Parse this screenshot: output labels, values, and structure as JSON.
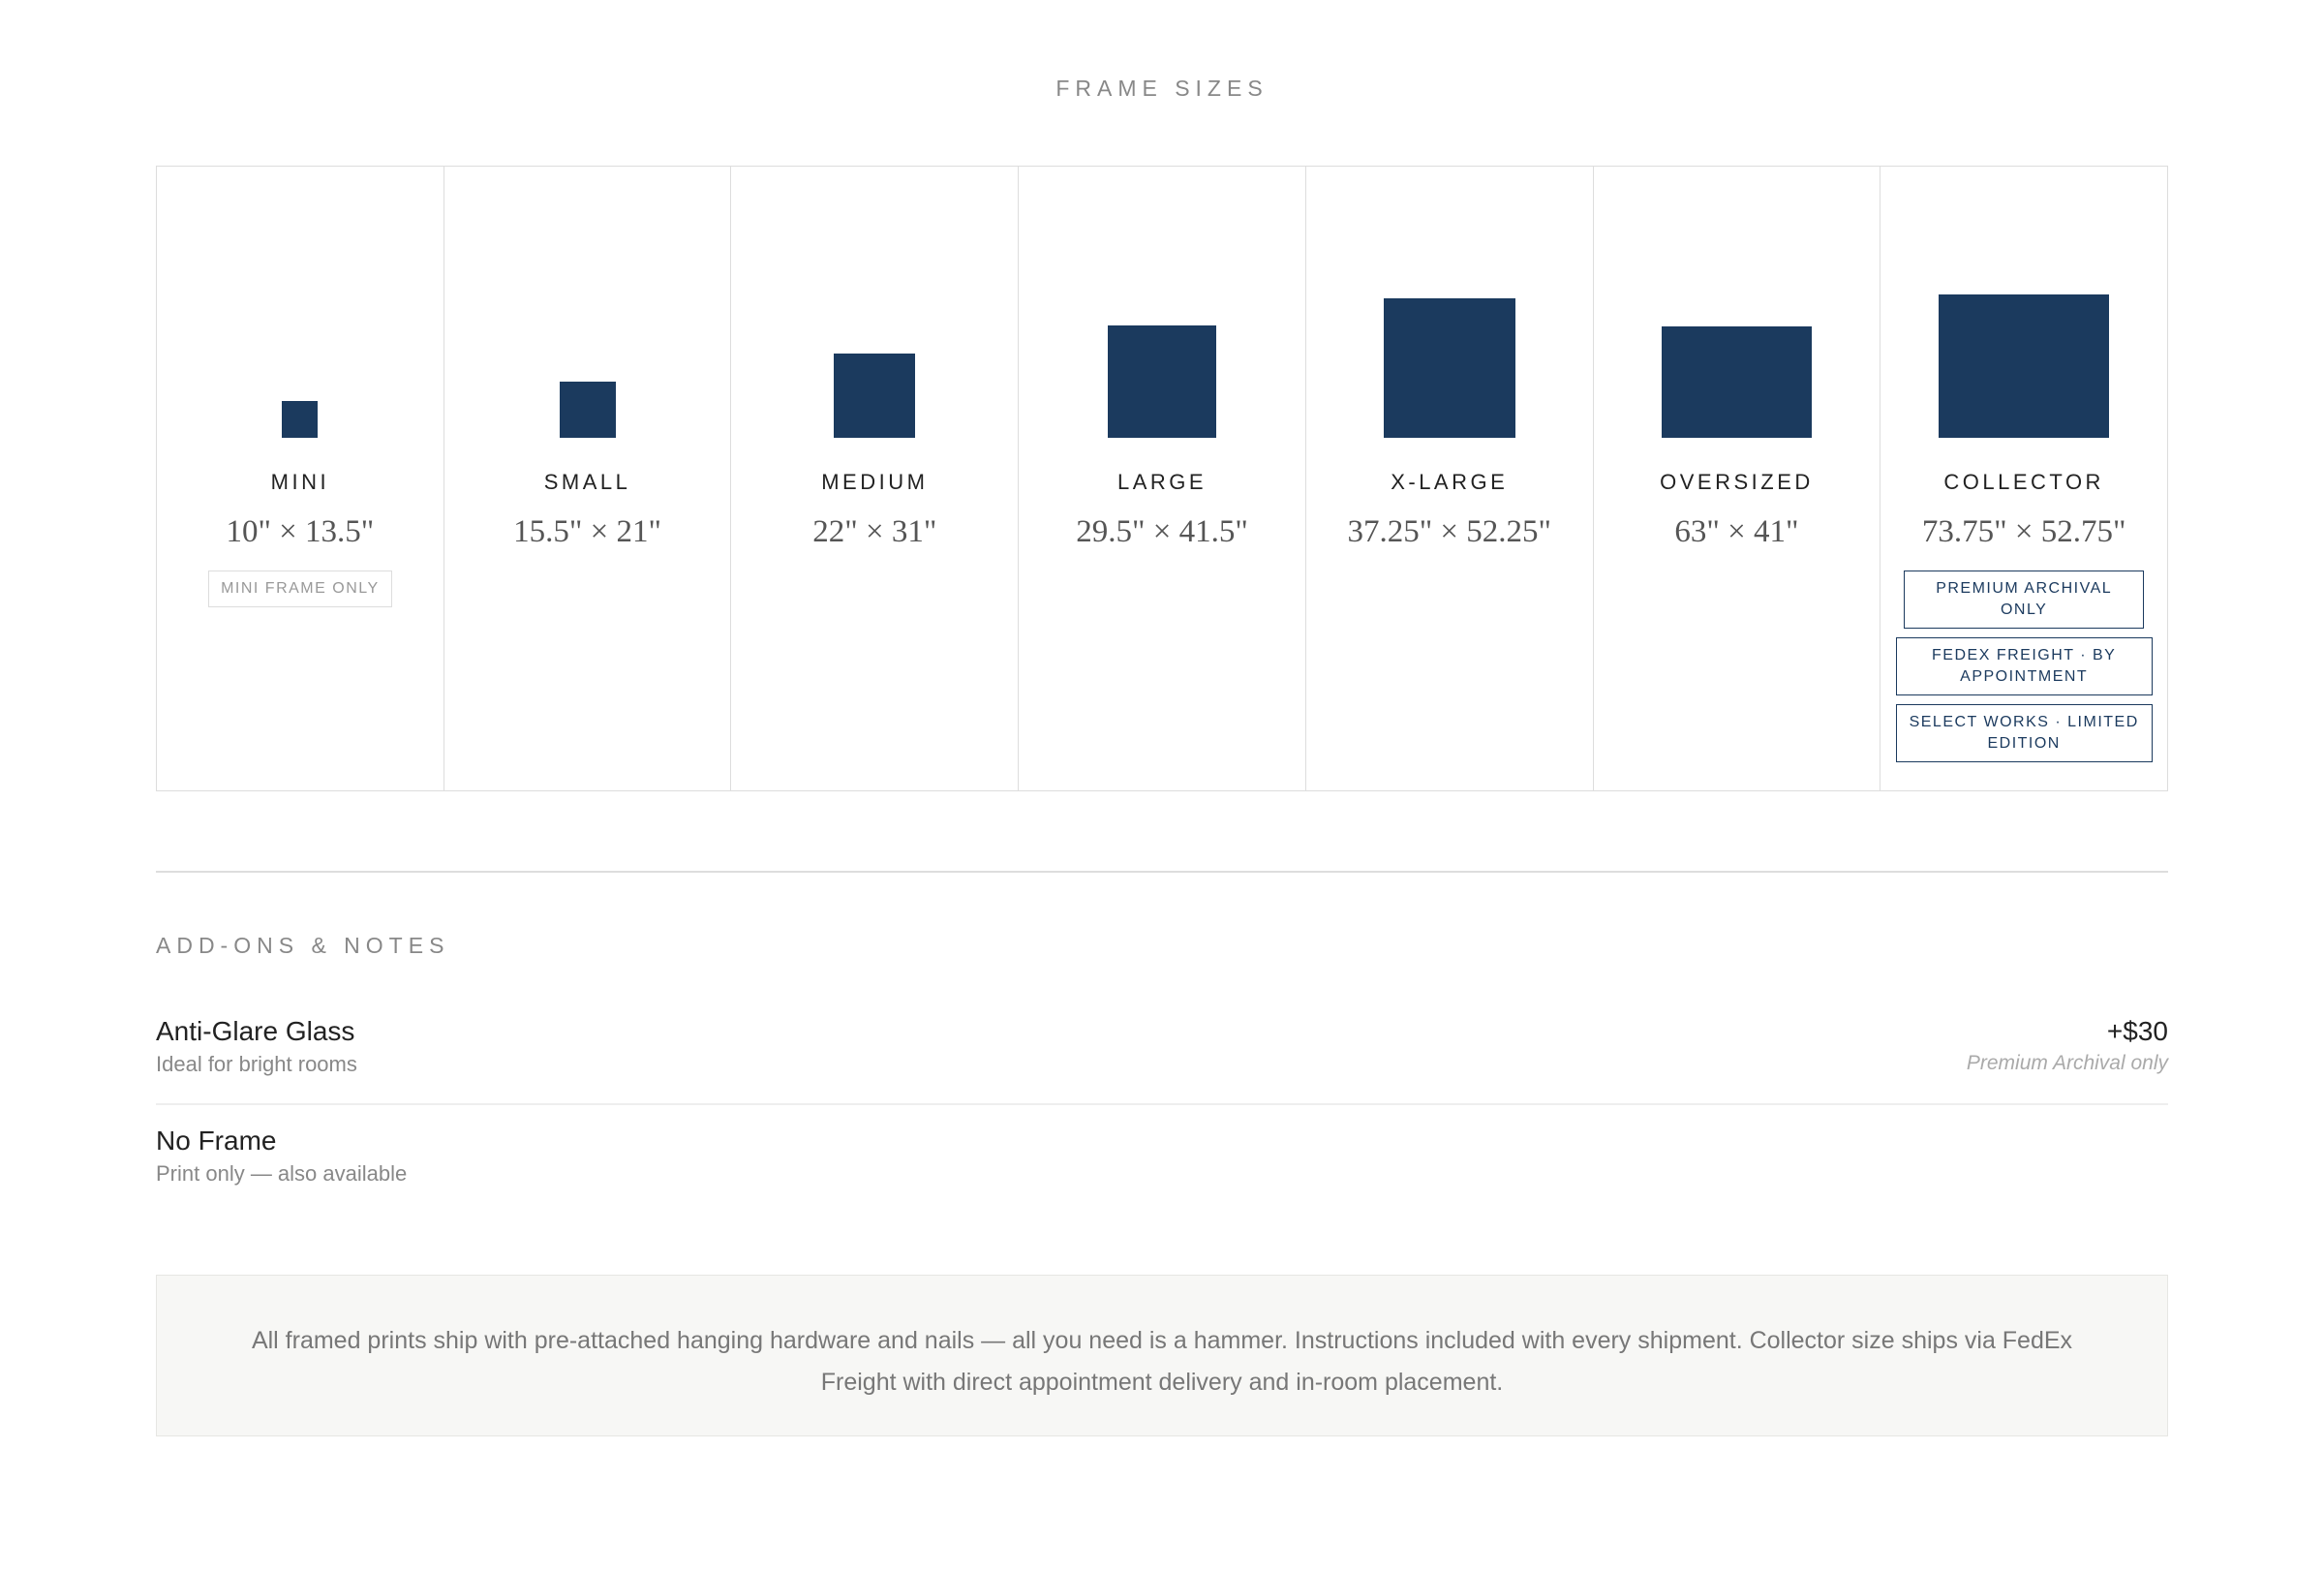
{
  "header": {
    "title": "FRAME SIZES"
  },
  "sizes": [
    {
      "name": "MINI",
      "dimensions": "10\" × 13.5\"",
      "badges": [
        "MINI FRAME ONLY"
      ]
    },
    {
      "name": "SMALL",
      "dimensions": "15.5\" × 21\"",
      "badges": []
    },
    {
      "name": "MEDIUM",
      "dimensions": "22\" × 31\"",
      "badges": []
    },
    {
      "name": "LARGE",
      "dimensions": "29.5\" × 41.5\"",
      "badges": []
    },
    {
      "name": "X-LARGE",
      "dimensions": "37.25\" × 52.25\"",
      "badges": []
    },
    {
      "name": "OVERSIZED",
      "dimensions": "63\" × 41\"",
      "badges": []
    },
    {
      "name": "COLLECTOR",
      "dimensions": "73.75\" × 52.75\"",
      "badges": [
        "PREMIUM ARCHIVAL ONLY",
        "FEDEX FREIGHT · BY APPOINTMENT",
        "SELECT WORKS · LIMITED EDITION"
      ]
    }
  ],
  "addons": {
    "title": "ADD-ONS & NOTES",
    "items": [
      {
        "name": "Anti-Glare Glass",
        "description": "Ideal for bright rooms",
        "price": "+$30",
        "note": "Premium Archival only"
      },
      {
        "name": "No Frame",
        "description": "Print only — also available"
      }
    ]
  },
  "footer_note": "All framed prints ship with pre-attached hanging hardware and nails — all you need is a hammer. Instructions included with every shipment. Collector size ships via FedEx Freight with direct appointment delivery and in-room placement."
}
